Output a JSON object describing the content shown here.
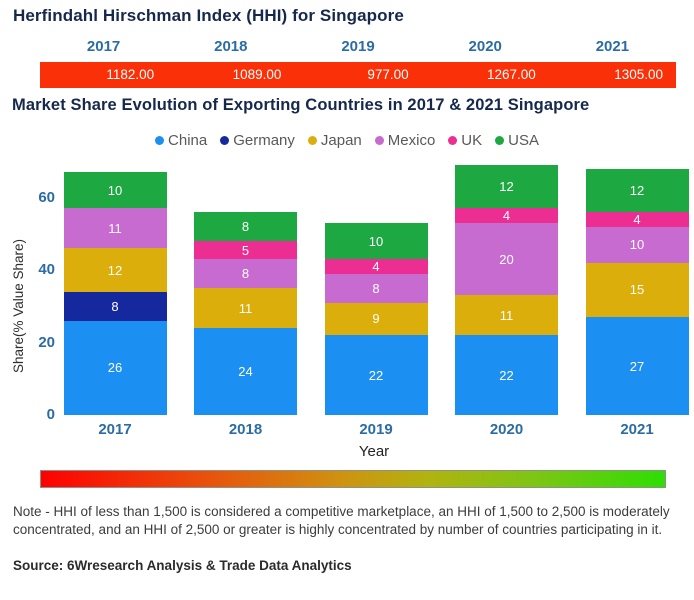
{
  "header": {
    "title": "Herfindahl Hirschman Index (HHI) for Singapore",
    "years": [
      "2017",
      "2018",
      "2019",
      "2020",
      "2021"
    ],
    "hhi_values": [
      "1182.00",
      "1089.00",
      "977.00",
      "1267.00",
      "1305.00"
    ],
    "bar_color": "#fa3108"
  },
  "chart": {
    "title": "Market Share Evolution of Exporting Countries in 2017 & 2021 Singapore"
  },
  "chart_data": {
    "type": "bar",
    "stacked": true,
    "title": "Market Share Evolution of Exporting Countries in 2017 & 2021 Singapore",
    "categories": [
      "2017",
      "2018",
      "2019",
      "2020",
      "2021"
    ],
    "series": [
      {
        "name": "China",
        "color": "#1b8ff2",
        "values": [
          26,
          24,
          22,
          22,
          27
        ]
      },
      {
        "name": "Germany",
        "color": "#16289e",
        "values": [
          8,
          0,
          0,
          0,
          0
        ]
      },
      {
        "name": "Japan",
        "color": "#dcae0c",
        "values": [
          12,
          11,
          9,
          11,
          15
        ]
      },
      {
        "name": "Mexico",
        "color": "#c86bd1",
        "values": [
          11,
          8,
          8,
          20,
          10
        ]
      },
      {
        "name": "UK",
        "color": "#ec2d92",
        "values": [
          0,
          5,
          4,
          4,
          4
        ]
      },
      {
        "name": "USA",
        "color": "#1da841",
        "values": [
          10,
          8,
          10,
          12,
          12
        ]
      }
    ],
    "xlabel": "Year",
    "ylabel": "Share(% Value Share)",
    "yticks": [
      0,
      20,
      40,
      60
    ],
    "ylim": [
      0,
      69
    ],
    "legend_position": "top",
    "grid": false
  },
  "footer": {
    "note": "Note - HHI of less than 1,500 is considered a competitive marketplace, an HHI of 1,500 to 2,500 is moderately concentrated, and an HHI of 2,500 or greater is highly concentrated by number of countries participating in it.",
    "source": "Source: 6Wresearch Analysis & Trade Data Analytics"
  },
  "colors": {
    "accent_navy": "#16294d",
    "axis_blue": "#2b6ca4",
    "hhi_bar_red": "#fa3108",
    "legend_text": "#595959",
    "gradient_stops": [
      "#fe0101",
      "#e7560c",
      "#cf9210",
      "#b1b310",
      "#7ec514",
      "#2ede04"
    ]
  }
}
